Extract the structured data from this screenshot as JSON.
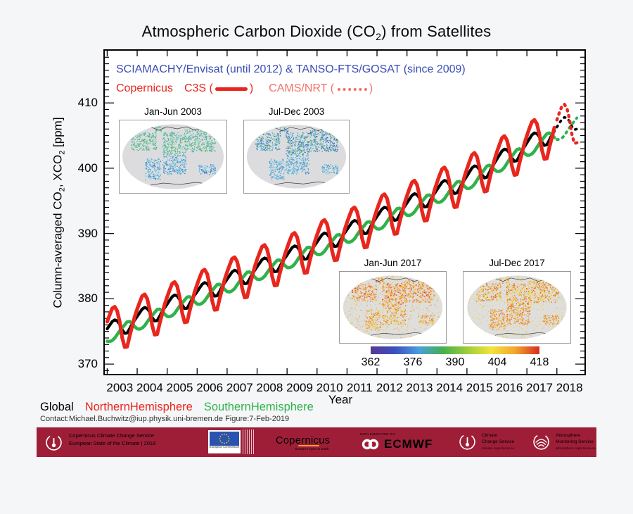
{
  "title": {
    "prefix": "Atmospheric Carbon Dioxide (CO",
    "sub": "2",
    "suffix": ") from Satellites"
  },
  "legend_top": {
    "line1": "SCIAMACHY/Envisat (until 2012) & TANSO-FTS/GOSAT (since 2009)",
    "line1_color": "#3a4db5",
    "copernicus": "Copernicus",
    "c3s_open": "C3S (",
    "c3s_close": ")",
    "cams_open": "CAMS/NRT (",
    "cams_close": ")",
    "c3s_color": "#e8261e",
    "cams_color": "#f0736b"
  },
  "y_axis": {
    "label_parts": [
      "Column-averaged CO",
      "2",
      ", XCO",
      "2",
      " [ppm]"
    ]
  },
  "x_axis": {
    "label": "Year"
  },
  "insets": [
    {
      "title": "Jan-Jun 2003",
      "mode": "land",
      "bg": "#dcdcde",
      "north": [
        "#49b06a",
        "#7dc9a0",
        "#55b8d8",
        "#65c28a"
      ],
      "south": [
        "#55aede",
        "#3f7fc8",
        "#62c4d8"
      ],
      "ocean": []
    },
    {
      "title": "Jul-Dec 2003",
      "mode": "land",
      "bg": "#dcdcde",
      "north": [
        "#3a5cc0",
        "#4f9ad8",
        "#58b8dc",
        "#49b06a"
      ],
      "south": [
        "#55aede",
        "#4f8fd0",
        "#62c8d8"
      ],
      "ocean": []
    },
    {
      "title": "Jan-Jun 2017",
      "mode": "stripes",
      "bg": "#dedede",
      "north": [
        "#e2512a",
        "#ef8438",
        "#f5aa3c",
        "#f0c84a"
      ],
      "south": [
        "#f2d64e",
        "#efae3c",
        "#e87830"
      ],
      "ocean": [
        "#f2dc5a",
        "#f0c24a",
        "#efa23c"
      ]
    },
    {
      "title": "Jul-Dec 2017",
      "mode": "stripes",
      "bg": "#dedede",
      "north": [
        "#f0c24a",
        "#efa030",
        "#e2602a",
        "#f2d64e"
      ],
      "south": [
        "#f0b83c",
        "#ef9a33",
        "#e8742c"
      ],
      "ocean": [
        "#f2dc5a",
        "#f0c24a"
      ]
    }
  ],
  "colorbar": {
    "ticks": [
      362,
      376,
      390,
      404,
      418
    ],
    "gradient": [
      "#5a3795",
      "#3b4fc0",
      "#4b9fdc",
      "#45b04c",
      "#9fcc3a",
      "#f2e43c",
      "#f2a52e",
      "#d92b20"
    ]
  },
  "legend_bottom": [
    {
      "label": "Global",
      "color": "#000000"
    },
    {
      "label": "NorthernHemisphere",
      "color": "#e8261e"
    },
    {
      "label": "SouthernHemisphere",
      "color": "#2eb34b"
    }
  ],
  "contact": "Contact:Michael.Buchwitz@iup.physik.uni-bremen.de Figure:7-Feb-2019",
  "footer": {
    "banner_color": "#9e1e38",
    "c3s_line1": "Copernicus Climate Change Service",
    "c3s_line2": "European State of the Climate | 2018",
    "eu_label1": "European",
    "eu_label2": "Commission",
    "copernicus": "Copernicus",
    "copernicus_tagline": "Europe's eyes on Earth",
    "implemented_by": "IMPLEMENTED BY",
    "ecmwf": "ECMWF",
    "ccs_line1": "Climate",
    "ccs_line2": "Change Service",
    "ccs_url": "climate.copernicus.eu",
    "ams_line1": "Atmosphere",
    "ams_line2": "Monitoring Service",
    "ams_url": "atmosphere.copernicus.eu"
  },
  "chart_data": {
    "type": "line",
    "title": "Atmospheric Carbon Dioxide (CO2) from Satellites",
    "xlabel": "Year",
    "ylabel": "Column-averaged CO2, XCO2 [ppm]",
    "xlim": [
      2002.92,
      2018.92
    ],
    "ylim": [
      368.5,
      418.0
    ],
    "x_ticks": [
      2003,
      2004,
      2005,
      2006,
      2007,
      2008,
      2009,
      2010,
      2011,
      2012,
      2013,
      2014,
      2015,
      2016,
      2017,
      2018
    ],
    "y_ticks": [
      370,
      380,
      390,
      400,
      410
    ],
    "grid": false,
    "trend_start_year": 2003,
    "annual_trend_jan": [
      374.9,
      376.8,
      378.7,
      380.6,
      382.5,
      384.4,
      386.2,
      388.2,
      390.1,
      392.1,
      394.2,
      396.2,
      398.3,
      400.9,
      403.4,
      405.8,
      408.2
    ],
    "series": [
      {
        "name": "Global",
        "color": "#000000",
        "width": 4.2,
        "z": 1,
        "seasonal_offsets": [
          0.5,
          0.9,
          1.3,
          1.4,
          1.1,
          0.4,
          -0.6,
          -1.3,
          -1.4,
          -0.9,
          -0.3,
          0.1
        ],
        "solid_until": 2017.92,
        "dotted_until": 2018.67
      },
      {
        "name": "SouthernHemisphere",
        "color": "#2eb34b",
        "width": 4.6,
        "z": 2,
        "seasonal_offsets": [
          -1.4,
          -1.6,
          -1.6,
          -1.4,
          -1.0,
          -0.6,
          -0.3,
          0.0,
          0.3,
          0.2,
          -0.3,
          -0.9
        ],
        "solid_until": 2017.92,
        "dotted_until": 2018.67
      },
      {
        "name": "NorthernHemisphere",
        "color": "#e8261e",
        "width": 5.2,
        "z": 3,
        "seasonal_offsets": [
          1.6,
          2.5,
          3.3,
          3.4,
          2.6,
          0.8,
          -1.8,
          -3.4,
          -3.5,
          -2.0,
          -0.7,
          0.6
        ],
        "solid_until": 2017.92,
        "dotted_until": 2018.67
      }
    ],
    "line_style_legend": {
      "C3S": "thick solid",
      "CAMS/NRT": "dotted"
    }
  }
}
